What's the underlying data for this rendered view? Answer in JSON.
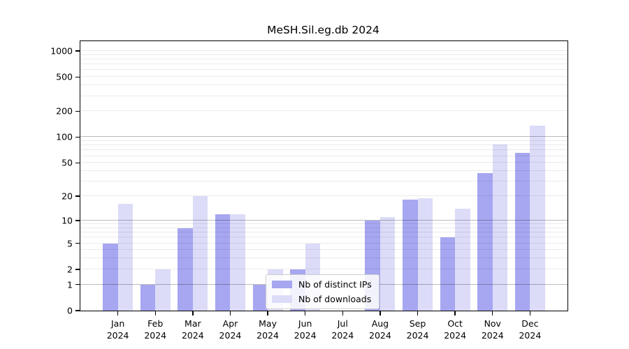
{
  "title": "MeSH.Sil.eg.db 2024",
  "chart_data": {
    "type": "bar",
    "title": "MeSH.Sil.eg.db 2024",
    "categories": [
      "Jan 2024",
      "Feb 2024",
      "Mar 2024",
      "Apr 2024",
      "May 2024",
      "Jun 2024",
      "Jul 2024",
      "Aug 2024",
      "Sep 2024",
      "Oct 2024",
      "Nov 2024",
      "Dec 2024"
    ],
    "series": [
      {
        "name": "Nb of distinct IPs",
        "color": "#a6a6f1",
        "values": [
          5,
          1,
          8,
          12,
          1,
          2,
          0,
          10,
          18,
          6,
          38,
          66
        ]
      },
      {
        "name": "Nb of downloads",
        "color": "#dcdcf8",
        "values": [
          16,
          2,
          20,
          12,
          2,
          5,
          0,
          11,
          19,
          14,
          82,
          136
        ]
      }
    ],
    "yscale": "log10(1+y)",
    "ylim": [
      0,
      1290
    ],
    "y_ticks": [
      0,
      1,
      2,
      5,
      10,
      20,
      50,
      100,
      200,
      500,
      1000
    ],
    "y_major_gridlines": [
      1,
      10,
      100
    ],
    "y_minor_gridlines": [
      2,
      3,
      4,
      5,
      6,
      7,
      8,
      9,
      20,
      30,
      40,
      50,
      60,
      70,
      80,
      90,
      200,
      300,
      400,
      500,
      600,
      700,
      800,
      900,
      1000
    ],
    "grid": "horizontal",
    "legend_position": "inside lower-center",
    "colors": {
      "major_grid": "rgba(0,0,0,0.27)",
      "minor_grid": "rgba(0,0,0,0.08)",
      "axis": "#000000",
      "background": "#ffffff"
    }
  }
}
